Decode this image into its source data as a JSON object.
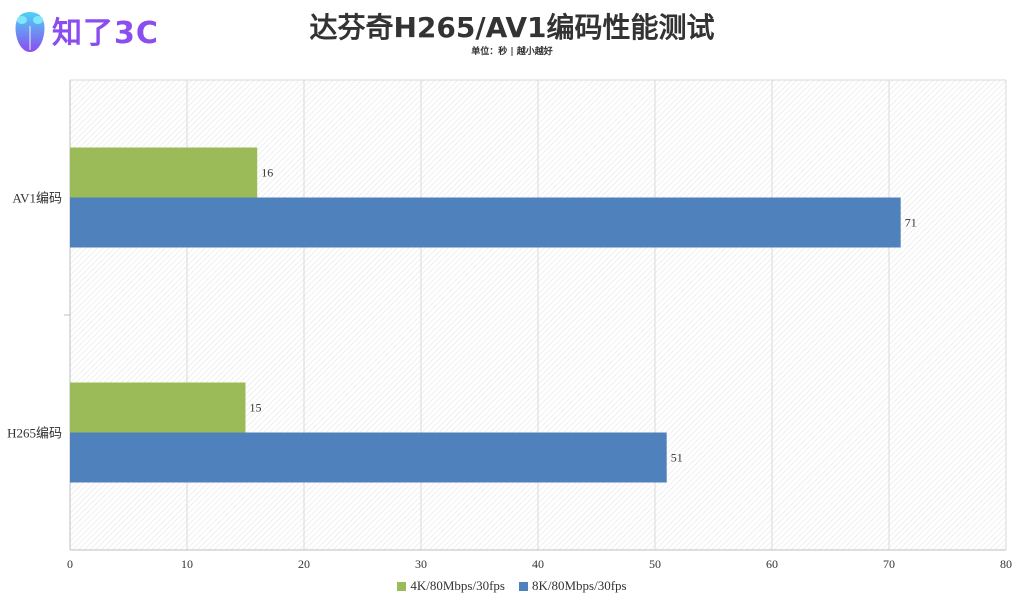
{
  "logo": {
    "text": "知了3C",
    "icon": "cicada-logo-icon"
  },
  "chart_data": {
    "type": "bar",
    "orientation": "horizontal",
    "title": "达芬奇H265/AV1编码性能测试",
    "subtitle": "单位：秒 | 越小越好",
    "categories": [
      "AV1编码",
      "H265编码"
    ],
    "series": [
      {
        "name": "4K/80Mbps/30fps",
        "color": "#9bbb59",
        "values": [
          16,
          15
        ]
      },
      {
        "name": "8K/80Mbps/30fps",
        "color": "#4f81bd",
        "values": [
          71,
          51
        ]
      }
    ],
    "xlim": [
      0,
      80
    ],
    "xticks": [
      0,
      10,
      20,
      30,
      40,
      50,
      60,
      70,
      80
    ],
    "grid": true,
    "legend_position": "bottom"
  }
}
